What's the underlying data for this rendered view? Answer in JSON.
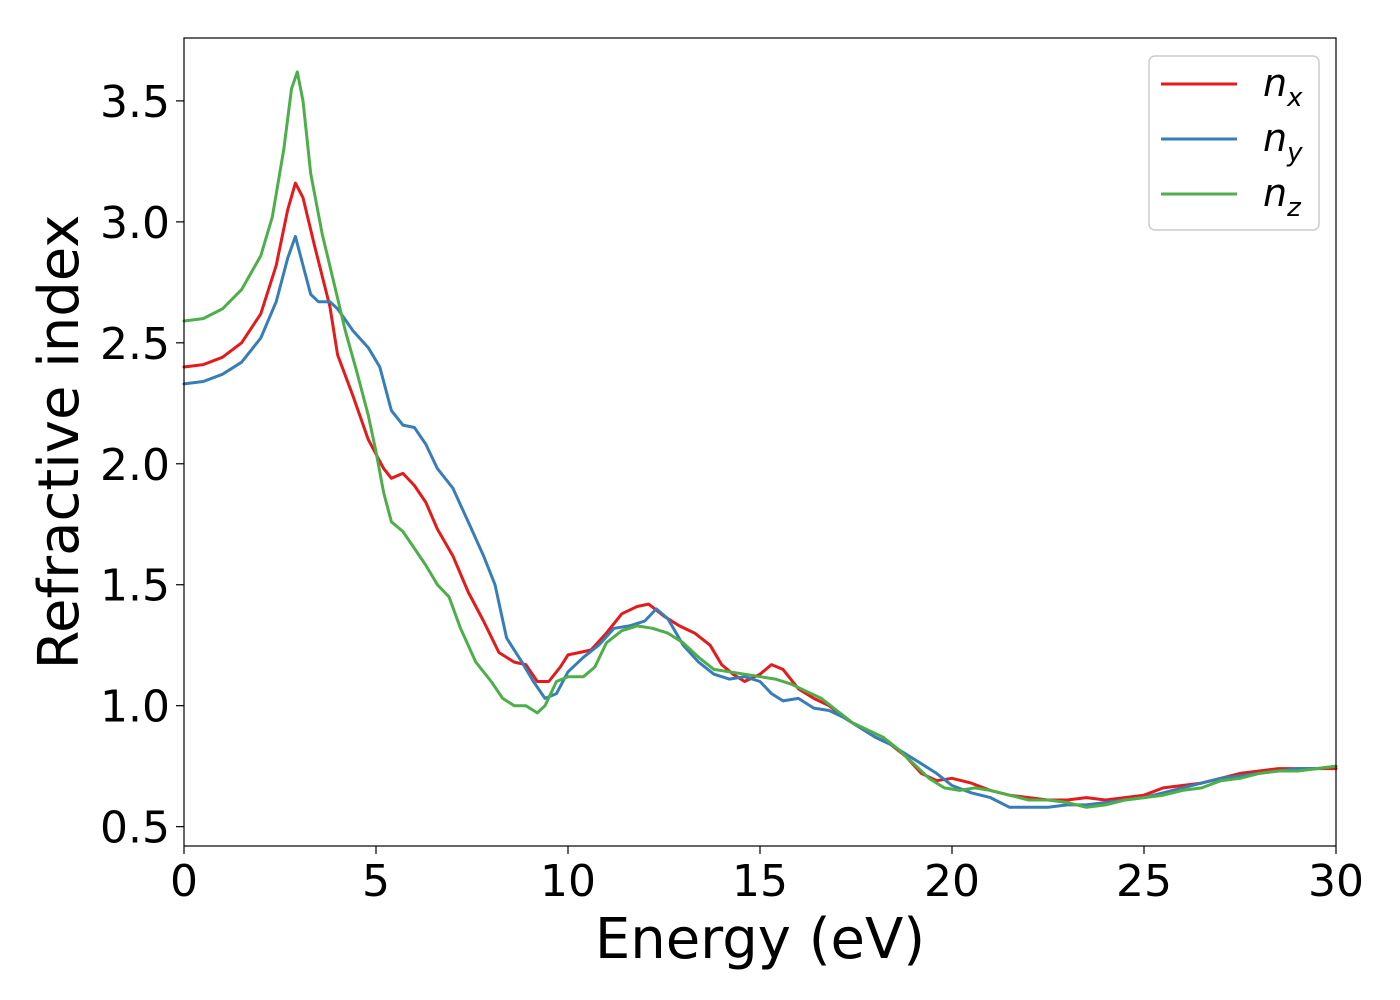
{
  "chart_data": {
    "type": "line",
    "title": "",
    "xlabel": "Energy (eV)",
    "ylabel": "Refractive index",
    "xlim": [
      0,
      30
    ],
    "ylim": [
      0.42,
      3.76
    ],
    "xticks": [
      "0",
      "5",
      "10",
      "15",
      "20",
      "25",
      "30"
    ],
    "yticks": [
      "0.5",
      "1.0",
      "1.5",
      "2.0",
      "2.5",
      "3.0",
      "3.5"
    ],
    "grid": false,
    "legend_position": "top-right",
    "series": [
      {
        "name": "n",
        "subscript": "x",
        "color": "#e41a1c",
        "points": [
          [
            0,
            2.4
          ],
          [
            0.5,
            2.41
          ],
          [
            1.0,
            2.44
          ],
          [
            1.5,
            2.5
          ],
          [
            2.0,
            2.62
          ],
          [
            2.4,
            2.82
          ],
          [
            2.7,
            3.05
          ],
          [
            2.9,
            3.16
          ],
          [
            3.1,
            3.1
          ],
          [
            3.4,
            2.9
          ],
          [
            3.8,
            2.65
          ],
          [
            4.0,
            2.45
          ],
          [
            4.4,
            2.28
          ],
          [
            4.8,
            2.1
          ],
          [
            5.2,
            1.98
          ],
          [
            5.4,
            1.94
          ],
          [
            5.7,
            1.96
          ],
          [
            6.0,
            1.91
          ],
          [
            6.3,
            1.84
          ],
          [
            6.6,
            1.73
          ],
          [
            7.0,
            1.62
          ],
          [
            7.4,
            1.47
          ],
          [
            7.8,
            1.35
          ],
          [
            8.2,
            1.22
          ],
          [
            8.6,
            1.18
          ],
          [
            8.9,
            1.17
          ],
          [
            9.2,
            1.1
          ],
          [
            9.5,
            1.1
          ],
          [
            9.8,
            1.16
          ],
          [
            10.0,
            1.21
          ],
          [
            10.3,
            1.22
          ],
          [
            10.6,
            1.23
          ],
          [
            11.0,
            1.3
          ],
          [
            11.4,
            1.38
          ],
          [
            11.8,
            1.41
          ],
          [
            12.1,
            1.42
          ],
          [
            12.5,
            1.37
          ],
          [
            12.9,
            1.33
          ],
          [
            13.3,
            1.3
          ],
          [
            13.7,
            1.25
          ],
          [
            14.0,
            1.17
          ],
          [
            14.3,
            1.13
          ],
          [
            14.6,
            1.1
          ],
          [
            15.0,
            1.13
          ],
          [
            15.3,
            1.17
          ],
          [
            15.6,
            1.15
          ],
          [
            16.0,
            1.07
          ],
          [
            16.4,
            1.03
          ],
          [
            16.8,
            1.0
          ],
          [
            17.2,
            0.95
          ],
          [
            17.6,
            0.91
          ],
          [
            18.0,
            0.87
          ],
          [
            18.4,
            0.84
          ],
          [
            18.8,
            0.79
          ],
          [
            19.2,
            0.72
          ],
          [
            19.6,
            0.69
          ],
          [
            20.0,
            0.7
          ],
          [
            20.5,
            0.68
          ],
          [
            21.0,
            0.65
          ],
          [
            21.5,
            0.63
          ],
          [
            22.0,
            0.62
          ],
          [
            22.5,
            0.61
          ],
          [
            23.0,
            0.61
          ],
          [
            23.5,
            0.62
          ],
          [
            24.0,
            0.61
          ],
          [
            24.5,
            0.62
          ],
          [
            25.0,
            0.63
          ],
          [
            25.5,
            0.66
          ],
          [
            26.0,
            0.67
          ],
          [
            26.5,
            0.68
          ],
          [
            27.0,
            0.7
          ],
          [
            27.5,
            0.72
          ],
          [
            28.0,
            0.73
          ],
          [
            28.5,
            0.74
          ],
          [
            29.0,
            0.74
          ],
          [
            29.5,
            0.74
          ],
          [
            30.0,
            0.74
          ]
        ]
      },
      {
        "name": "n",
        "subscript": "y",
        "color": "#377eb8",
        "points": [
          [
            0,
            2.33
          ],
          [
            0.5,
            2.34
          ],
          [
            1.0,
            2.37
          ],
          [
            1.5,
            2.42
          ],
          [
            2.0,
            2.52
          ],
          [
            2.4,
            2.67
          ],
          [
            2.7,
            2.85
          ],
          [
            2.9,
            2.94
          ],
          [
            3.1,
            2.82
          ],
          [
            3.3,
            2.7
          ],
          [
            3.5,
            2.67
          ],
          [
            3.8,
            2.67
          ],
          [
            4.0,
            2.64
          ],
          [
            4.4,
            2.55
          ],
          [
            4.8,
            2.48
          ],
          [
            5.1,
            2.4
          ],
          [
            5.4,
            2.22
          ],
          [
            5.7,
            2.16
          ],
          [
            6.0,
            2.15
          ],
          [
            6.3,
            2.08
          ],
          [
            6.6,
            1.98
          ],
          [
            7.0,
            1.9
          ],
          [
            7.4,
            1.76
          ],
          [
            7.8,
            1.62
          ],
          [
            8.1,
            1.5
          ],
          [
            8.4,
            1.28
          ],
          [
            8.8,
            1.18
          ],
          [
            9.1,
            1.1
          ],
          [
            9.4,
            1.03
          ],
          [
            9.7,
            1.05
          ],
          [
            10.0,
            1.14
          ],
          [
            10.4,
            1.2
          ],
          [
            10.8,
            1.25
          ],
          [
            11.2,
            1.32
          ],
          [
            11.6,
            1.33
          ],
          [
            12.0,
            1.35
          ],
          [
            12.3,
            1.4
          ],
          [
            12.6,
            1.36
          ],
          [
            13.0,
            1.25
          ],
          [
            13.4,
            1.18
          ],
          [
            13.8,
            1.13
          ],
          [
            14.2,
            1.11
          ],
          [
            14.6,
            1.12
          ],
          [
            15.0,
            1.1
          ],
          [
            15.3,
            1.05
          ],
          [
            15.6,
            1.02
          ],
          [
            16.0,
            1.03
          ],
          [
            16.4,
            0.99
          ],
          [
            16.8,
            0.98
          ],
          [
            17.2,
            0.95
          ],
          [
            17.6,
            0.91
          ],
          [
            18.0,
            0.87
          ],
          [
            18.4,
            0.84
          ],
          [
            18.8,
            0.8
          ],
          [
            19.2,
            0.76
          ],
          [
            19.6,
            0.72
          ],
          [
            20.0,
            0.67
          ],
          [
            20.5,
            0.64
          ],
          [
            21.0,
            0.62
          ],
          [
            21.5,
            0.58
          ],
          [
            22.0,
            0.58
          ],
          [
            22.5,
            0.58
          ],
          [
            23.0,
            0.59
          ],
          [
            23.5,
            0.59
          ],
          [
            24.0,
            0.6
          ],
          [
            24.5,
            0.61
          ],
          [
            25.0,
            0.62
          ],
          [
            25.5,
            0.64
          ],
          [
            26.0,
            0.66
          ],
          [
            26.5,
            0.68
          ],
          [
            27.0,
            0.7
          ],
          [
            27.5,
            0.71
          ],
          [
            28.0,
            0.72
          ],
          [
            28.5,
            0.73
          ],
          [
            29.0,
            0.74
          ],
          [
            29.5,
            0.74
          ],
          [
            30.0,
            0.75
          ]
        ]
      },
      {
        "name": "n",
        "subscript": "z",
        "color": "#4daf4a",
        "points": [
          [
            0,
            2.59
          ],
          [
            0.5,
            2.6
          ],
          [
            1.0,
            2.64
          ],
          [
            1.5,
            2.72
          ],
          [
            2.0,
            2.86
          ],
          [
            2.3,
            3.02
          ],
          [
            2.6,
            3.3
          ],
          [
            2.8,
            3.55
          ],
          [
            2.95,
            3.62
          ],
          [
            3.1,
            3.5
          ],
          [
            3.3,
            3.2
          ],
          [
            3.6,
            2.95
          ],
          [
            3.9,
            2.75
          ],
          [
            4.2,
            2.55
          ],
          [
            4.5,
            2.38
          ],
          [
            4.8,
            2.2
          ],
          [
            5.0,
            2.05
          ],
          [
            5.2,
            1.88
          ],
          [
            5.4,
            1.76
          ],
          [
            5.7,
            1.72
          ],
          [
            6.0,
            1.65
          ],
          [
            6.3,
            1.58
          ],
          [
            6.6,
            1.5
          ],
          [
            6.9,
            1.45
          ],
          [
            7.2,
            1.32
          ],
          [
            7.6,
            1.18
          ],
          [
            8.0,
            1.1
          ],
          [
            8.3,
            1.03
          ],
          [
            8.6,
            1.0
          ],
          [
            8.9,
            1.0
          ],
          [
            9.2,
            0.97
          ],
          [
            9.4,
            1.0
          ],
          [
            9.7,
            1.1
          ],
          [
            10.0,
            1.12
          ],
          [
            10.4,
            1.12
          ],
          [
            10.7,
            1.16
          ],
          [
            11.0,
            1.26
          ],
          [
            11.4,
            1.31
          ],
          [
            11.8,
            1.33
          ],
          [
            12.2,
            1.32
          ],
          [
            12.6,
            1.3
          ],
          [
            13.0,
            1.26
          ],
          [
            13.4,
            1.2
          ],
          [
            13.8,
            1.15
          ],
          [
            14.2,
            1.14
          ],
          [
            14.6,
            1.13
          ],
          [
            15.0,
            1.12
          ],
          [
            15.4,
            1.11
          ],
          [
            15.8,
            1.09
          ],
          [
            16.2,
            1.06
          ],
          [
            16.6,
            1.03
          ],
          [
            17.0,
            0.98
          ],
          [
            17.4,
            0.93
          ],
          [
            17.8,
            0.9
          ],
          [
            18.2,
            0.87
          ],
          [
            18.6,
            0.82
          ],
          [
            19.0,
            0.76
          ],
          [
            19.4,
            0.7
          ],
          [
            19.8,
            0.66
          ],
          [
            20.2,
            0.65
          ],
          [
            20.6,
            0.66
          ],
          [
            21.0,
            0.65
          ],
          [
            21.5,
            0.63
          ],
          [
            22.0,
            0.61
          ],
          [
            22.5,
            0.61
          ],
          [
            23.0,
            0.6
          ],
          [
            23.5,
            0.58
          ],
          [
            24.0,
            0.59
          ],
          [
            24.5,
            0.61
          ],
          [
            25.0,
            0.62
          ],
          [
            25.5,
            0.63
          ],
          [
            26.0,
            0.65
          ],
          [
            26.5,
            0.66
          ],
          [
            27.0,
            0.69
          ],
          [
            27.5,
            0.7
          ],
          [
            28.0,
            0.72
          ],
          [
            28.5,
            0.73
          ],
          [
            29.0,
            0.73
          ],
          [
            29.5,
            0.74
          ],
          [
            30.0,
            0.75
          ]
        ]
      }
    ]
  }
}
